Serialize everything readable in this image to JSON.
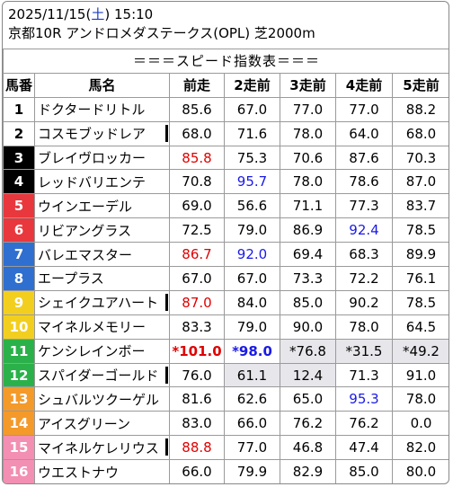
{
  "header": {
    "date": "2025/11/15",
    "weekday_open": "(",
    "weekday": "土",
    "weekday_close": ")",
    "time": "15:10",
    "race_info": "京都10R アンドロメダステークス(OPL) 芝2000m"
  },
  "table": {
    "title": "＝＝＝スピード指数表＝＝＝",
    "columns": [
      "馬番",
      "馬名",
      "前走",
      "2走前",
      "3走前",
      "4走前",
      "5走前"
    ],
    "rows": [
      {
        "num": "1",
        "name": "ドクタードリトル",
        "v": [
          "85.6",
          "67.0",
          "77.0",
          "77.0",
          "88.2"
        ]
      },
      {
        "num": "2",
        "name": "コスモブッドレア",
        "v": [
          "68.0",
          "71.6",
          "78.0",
          "64.0",
          "68.0"
        ]
      },
      {
        "num": "3",
        "name": "ブレイヴロッカー",
        "v": [
          "85.8",
          "75.3",
          "70.6",
          "87.6",
          "70.3"
        ]
      },
      {
        "num": "4",
        "name": "レッドバリエンテ",
        "v": [
          "70.8",
          "95.7",
          "78.0",
          "78.6",
          "87.0"
        ]
      },
      {
        "num": "5",
        "name": "ウインエーデル",
        "v": [
          "69.0",
          "56.6",
          "71.1",
          "77.3",
          "83.7"
        ]
      },
      {
        "num": "6",
        "name": "リビアングラス",
        "v": [
          "72.5",
          "79.0",
          "86.9",
          "92.4",
          "78.5"
        ]
      },
      {
        "num": "7",
        "name": "バレエマスター",
        "v": [
          "86.7",
          "92.0",
          "69.4",
          "68.3",
          "89.9"
        ]
      },
      {
        "num": "8",
        "name": "エープラス",
        "v": [
          "67.0",
          "67.0",
          "73.3",
          "72.2",
          "76.1"
        ]
      },
      {
        "num": "9",
        "name": "シェイクユアハート",
        "v": [
          "87.0",
          "84.0",
          "85.0",
          "90.2",
          "78.5"
        ]
      },
      {
        "num": "10",
        "name": "マイネルメモリー",
        "v": [
          "83.3",
          "79.0",
          "90.0",
          "78.0",
          "64.5"
        ]
      },
      {
        "num": "11",
        "name": "ケンシレインボー",
        "v": [
          "*101.0",
          "*98.0",
          "*76.8",
          "*31.5",
          "*49.2"
        ]
      },
      {
        "num": "12",
        "name": "スパイダーゴールド",
        "v": [
          "76.0",
          "61.1",
          "12.4",
          "71.3",
          "91.0"
        ]
      },
      {
        "num": "13",
        "name": "シュバルツクーゲル",
        "v": [
          "81.6",
          "62.6",
          "65.0",
          "95.3",
          "78.0"
        ]
      },
      {
        "num": "14",
        "name": "アイスグリーン",
        "v": [
          "83.0",
          "66.0",
          "76.2",
          "76.2",
          "0.0"
        ]
      },
      {
        "num": "15",
        "name": "マイネルケレリウス",
        "v": [
          "88.8",
          "77.0",
          "46.8",
          "47.4",
          "82.0"
        ]
      },
      {
        "num": "16",
        "name": "ウエストナウ",
        "v": [
          "66.0",
          "79.9",
          "82.9",
          "85.0",
          "80.0"
        ]
      }
    ]
  },
  "colors": {
    "waku1": "#ffffff",
    "waku2": "#000000",
    "waku3": "#e8383d",
    "waku4": "#2f6fd0",
    "waku5": "#f2cf1f",
    "waku6": "#2bb14a",
    "waku7": "#f39a2b",
    "waku8": "#f28fb2",
    "red_value": "#e00000",
    "blue_value": "#1a1ae6",
    "grey_cell": "#e6e6eb"
  }
}
